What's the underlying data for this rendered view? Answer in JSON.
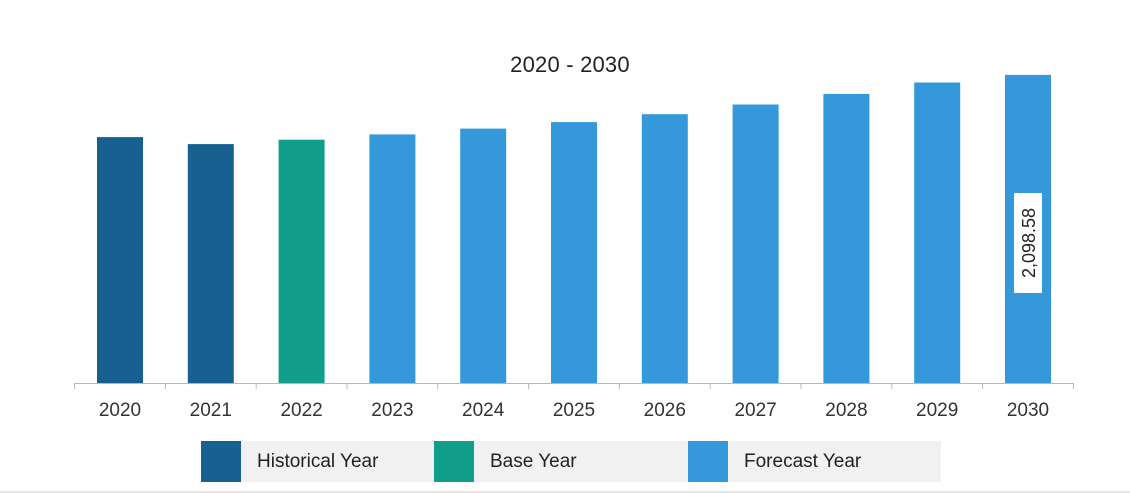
{
  "chart_data": {
    "type": "bar",
    "title": "2020 - 2030",
    "xlabel": "",
    "ylabel": "",
    "categories": [
      "2020",
      "2021",
      "2022",
      "2023",
      "2024",
      "2025",
      "2026",
      "2027",
      "2028",
      "2029",
      "2030"
    ],
    "values": [
      1675,
      1627,
      1657,
      1693,
      1733,
      1777,
      1831,
      1897,
      1969,
      2047,
      2098.58
    ],
    "year_type": [
      "Historical Year",
      "Historical Year",
      "Base Year",
      "Forecast Year",
      "Forecast Year",
      "Forecast Year",
      "Forecast Year",
      "Forecast Year",
      "Forecast Year",
      "Forecast Year",
      "Forecast Year"
    ],
    "data_labels": [
      {
        "category": "2030",
        "text": "2,098.58"
      }
    ],
    "ylim": [
      0,
      2200
    ],
    "grid": false,
    "legend": {
      "placement": "bottom",
      "entries": [
        {
          "label": "Historical Year",
          "color": "#17608f"
        },
        {
          "label": "Base Year",
          "color": "#119e8a"
        },
        {
          "label": "Forecast Year",
          "color": "#3498db"
        }
      ]
    },
    "colors": {
      "Historical Year": "#17608f",
      "Base Year": "#119e8a",
      "Forecast Year": "#3498db"
    }
  }
}
